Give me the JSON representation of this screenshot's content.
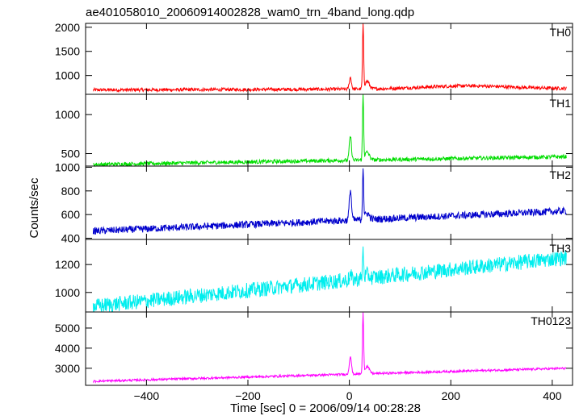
{
  "chart_data": {
    "type": "line",
    "title": "ae401058010_20060914002828_wam0_trn_4band_long.qdp",
    "xlabel": "Time [sec] 0 = 2006/09/14 00:28:28",
    "ylabel": "Counts/sec",
    "xlim": [
      -520,
      440
    ],
    "xticks": [
      -400,
      -200,
      0,
      200,
      400
    ],
    "grid": false,
    "series": [
      {
        "name": "TH0",
        "color": "#ff0000",
        "ylim": [
          610,
          2080
        ],
        "yticks": [
          1000,
          1500,
          2000
        ],
        "baseline_start": 700,
        "baseline_end": 730,
        "noise": 35,
        "precursor_peak": 960,
        "peak": 2060
      },
      {
        "name": "TH1",
        "color": "#00dd00",
        "ylim": [
          340,
          1260
        ],
        "yticks": [
          500,
          1000
        ],
        "baseline_start": 360,
        "baseline_end": 460,
        "noise": 25,
        "precursor_peak": 720,
        "peak": 1250
      },
      {
        "name": "TH2",
        "color": "#0000cc",
        "ylim": [
          390,
          1010
        ],
        "yticks": [
          400,
          600,
          800,
          1000
        ],
        "baseline_start": 460,
        "baseline_end": 630,
        "noise": 30,
        "precursor_peak": 810,
        "peak": 1000
      },
      {
        "name": "TH3",
        "color": "#00eeee",
        "ylim": [
          860,
          1380
        ],
        "yticks": [
          1000,
          1200
        ],
        "baseline_start": 900,
        "baseline_end": 1250,
        "noise": 55,
        "precursor_peak": 1120,
        "peak": 1300
      },
      {
        "name": "TH0123",
        "color": "#ff00ff",
        "ylim": [
          2150,
          5800
        ],
        "yticks": [
          3000,
          4000,
          5000
        ],
        "baseline_start": 2350,
        "baseline_end": 3000,
        "noise": 55,
        "precursor_peak": 3600,
        "peak": 5750
      }
    ]
  }
}
